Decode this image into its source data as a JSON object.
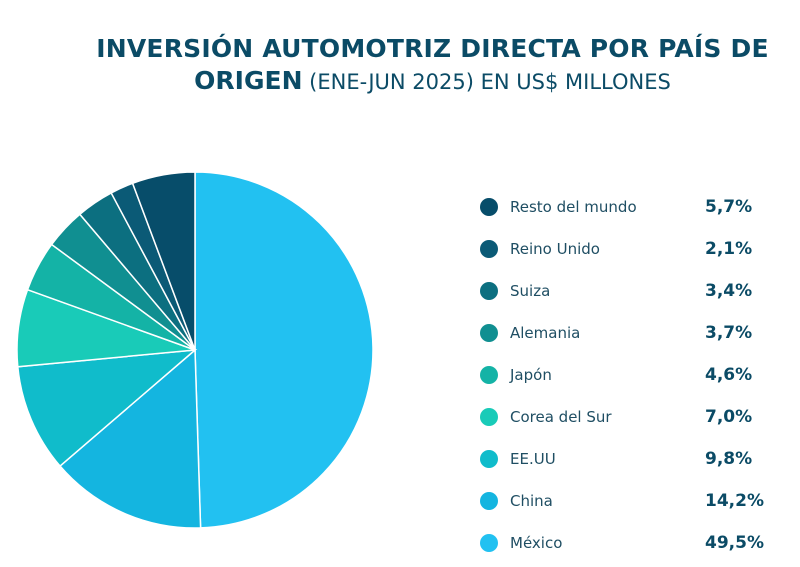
{
  "title": {
    "line1": "INVERSIÓN AUTOMOTRIZ DIRECTA POR PAÍS DE",
    "line2_bold": "ORIGEN",
    "line2_normal": " (ENE-JUN 2025) EN US$ MILLONES"
  },
  "chart_data": {
    "type": "pie",
    "title": "INVERSIÓN AUTOMOTRIZ DIRECTA POR PAÍS DE ORIGEN (ENE-JUN 2025) EN US$ MILLONES",
    "legend_position": "right",
    "slices": [
      {
        "label": "Resto del mundo",
        "value": 5.7,
        "display": "5,7%",
        "color": "#074d6a"
      },
      {
        "label": "Reino Unido",
        "value": 2.1,
        "display": "2,1%",
        "color": "#0b5a76"
      },
      {
        "label": "Suiza",
        "value": 3.4,
        "display": "3,4%",
        "color": "#0c6f80"
      },
      {
        "label": "Alemania",
        "value": 3.7,
        "display": "3,7%",
        "color": "#108f91"
      },
      {
        "label": "Japón",
        "value": 4.6,
        "display": "4,6%",
        "color": "#14b3a6"
      },
      {
        "label": "Corea del Sur",
        "value": 7.0,
        "display": "7,0%",
        "color": "#19cbb8"
      },
      {
        "label": "EE.UU",
        "value": 9.8,
        "display": "9,8%",
        "color": "#10bccb"
      },
      {
        "label": "China",
        "value": 14.2,
        "display": "14,2%",
        "color": "#14b5e0"
      },
      {
        "label": "México",
        "value": 49.5,
        "display": "49,5%",
        "color": "#22c1f1"
      }
    ]
  }
}
